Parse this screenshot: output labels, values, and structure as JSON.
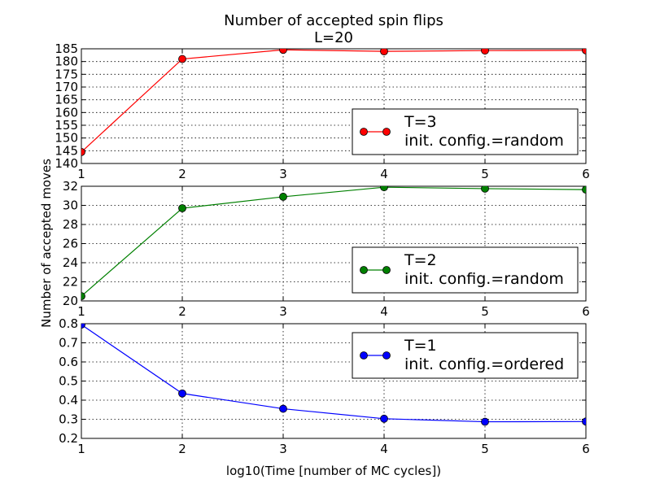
{
  "figure": {
    "title_line1": "Number of accepted spin flips",
    "title_line2": "L=20",
    "xlabel": "log10(Time [number of MC cycles])",
    "ylabel": "Number of accepted moves"
  },
  "chart_data": [
    {
      "type": "line",
      "x": [
        1,
        2,
        3,
        4,
        5,
        6
      ],
      "series": [
        {
          "name": "T=3",
          "values": [
            144.5,
            181.0,
            184.6,
            184.0,
            184.3,
            184.4
          ],
          "color": "#ff0000"
        }
      ],
      "legend": [
        "T=3",
        "init. config.=random"
      ],
      "legend_placement": "lower-right",
      "xlim": [
        1,
        6
      ],
      "ylim": [
        140,
        185
      ],
      "xticks": [
        "1",
        "2",
        "3",
        "4",
        "5",
        "6"
      ],
      "yticks": [
        "140",
        "145",
        "150",
        "155",
        "160",
        "165",
        "170",
        "175",
        "180",
        "185"
      ],
      "ytick_values": [
        140,
        145,
        150,
        155,
        160,
        165,
        170,
        175,
        180,
        185
      ],
      "grid": true
    },
    {
      "type": "line",
      "x": [
        1,
        2,
        3,
        4,
        5,
        6
      ],
      "series": [
        {
          "name": "T=2",
          "values": [
            20.5,
            29.7,
            30.9,
            31.9,
            31.75,
            31.65
          ],
          "color": "#008000"
        }
      ],
      "legend": [
        "T=2",
        "init. config.=random"
      ],
      "legend_placement": "lower-right",
      "xlim": [
        1,
        6
      ],
      "ylim": [
        20,
        32
      ],
      "xticks": [
        "1",
        "2",
        "3",
        "4",
        "5",
        "6"
      ],
      "yticks": [
        "20",
        "22",
        "24",
        "26",
        "28",
        "30",
        "32"
      ],
      "ytick_values": [
        20,
        22,
        24,
        26,
        28,
        30,
        32
      ],
      "grid": true
    },
    {
      "type": "line",
      "x": [
        1,
        2,
        3,
        4,
        5,
        6
      ],
      "series": [
        {
          "name": "T=1",
          "values": [
            0.795,
            0.435,
            0.355,
            0.303,
            0.287,
            0.288
          ],
          "color": "#0000ff"
        }
      ],
      "legend": [
        "T=1",
        "init. config.=ordered"
      ],
      "legend_placement": "upper-right",
      "xlim": [
        1,
        6
      ],
      "ylim": [
        0.2,
        0.8
      ],
      "xticks": [
        "1",
        "2",
        "3",
        "4",
        "5",
        "6"
      ],
      "yticks": [
        "0.2",
        "0.3",
        "0.4",
        "0.5",
        "0.6",
        "0.7",
        "0.8"
      ],
      "ytick_values": [
        0.2,
        0.3,
        0.4,
        0.5,
        0.6,
        0.7,
        0.8
      ],
      "grid": true
    }
  ]
}
